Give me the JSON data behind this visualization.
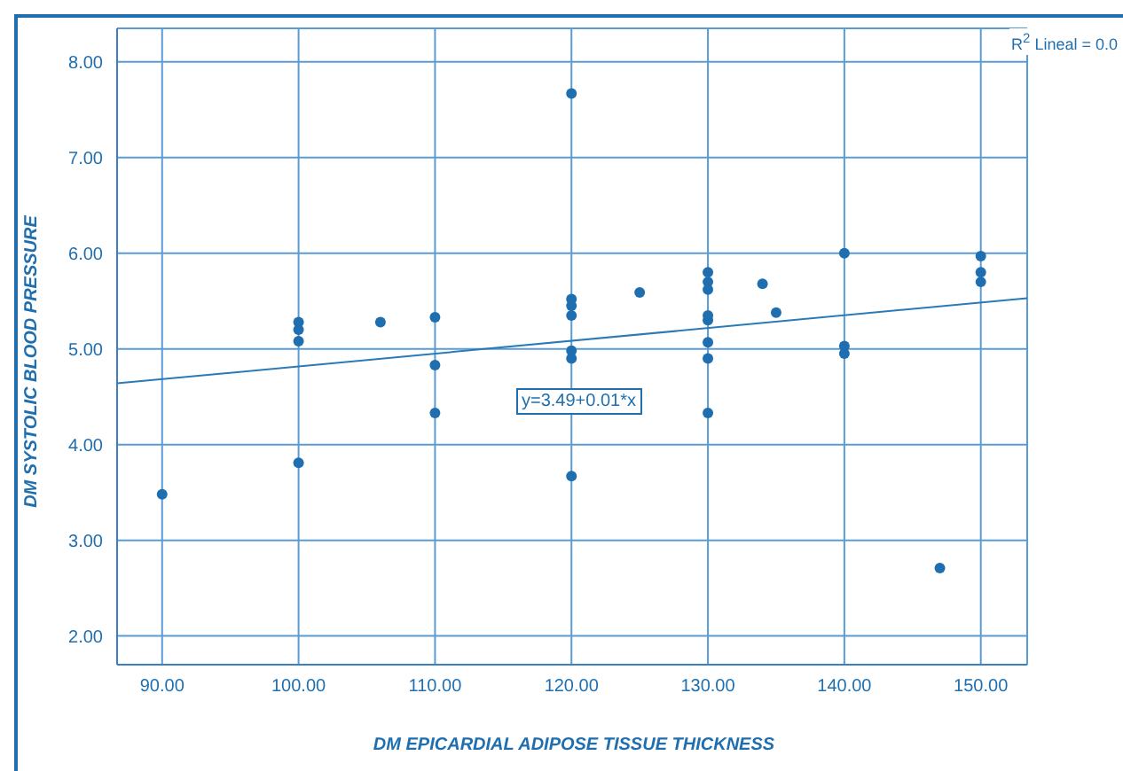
{
  "chart_data": {
    "type": "scatter",
    "xlabel": "DM EPICARDIAL ADIPOSE TISSUE THICKNESS",
    "ylabel": "DM SYSTOLIC BLOOD PRESSURE",
    "xlim": [
      86.7,
      153.4
    ],
    "ylim": [
      1.7,
      8.35
    ],
    "xticks": [
      {
        "value": 90,
        "label": "90.00"
      },
      {
        "value": 100,
        "label": "100.00"
      },
      {
        "value": 110,
        "label": "110.00"
      },
      {
        "value": 120,
        "label": "120.00"
      },
      {
        "value": 130,
        "label": "130.00"
      },
      {
        "value": 140,
        "label": "140.00"
      },
      {
        "value": 150,
        "label": "150.00"
      }
    ],
    "yticks": [
      {
        "value": 2,
        "label": "2.00"
      },
      {
        "value": 3,
        "label": "3.00"
      },
      {
        "value": 4,
        "label": "4.00"
      },
      {
        "value": 5,
        "label": "5.00"
      },
      {
        "value": 6,
        "label": "6.00"
      },
      {
        "value": 7,
        "label": "7.00"
      },
      {
        "value": 8,
        "label": "8.00"
      }
    ],
    "grid": true,
    "marker": "circle",
    "series": [
      {
        "color": "#1f6fb0",
        "x": [
          90,
          100,
          100,
          100,
          100,
          106,
          110,
          110,
          110,
          120,
          120,
          120,
          120,
          120,
          120,
          120,
          125,
          130,
          130,
          130,
          130,
          130,
          130,
          130,
          130,
          134,
          135,
          140,
          140,
          140,
          147,
          150,
          150,
          150
        ],
        "values": [
          3.48,
          5.28,
          5.2,
          5.08,
          3.81,
          5.28,
          5.33,
          4.83,
          4.33,
          7.67,
          5.52,
          5.45,
          5.35,
          4.98,
          4.9,
          3.67,
          5.59,
          5.8,
          5.7,
          5.62,
          5.35,
          5.3,
          5.07,
          4.9,
          4.33,
          5.68,
          5.38,
          6.0,
          5.03,
          4.95,
          2.71,
          5.97,
          5.8,
          5.7
        ]
      },
      {
        "type": "line",
        "color": "#2a7ab8",
        "x": [
          86.7,
          153.4
        ],
        "values": [
          4.64,
          5.53
        ],
        "marker": "none"
      }
    ],
    "annotations": [
      "y=3.49+0.01*x",
      "R$^{2}$ Lineal = 0.0"
    ]
  }
}
